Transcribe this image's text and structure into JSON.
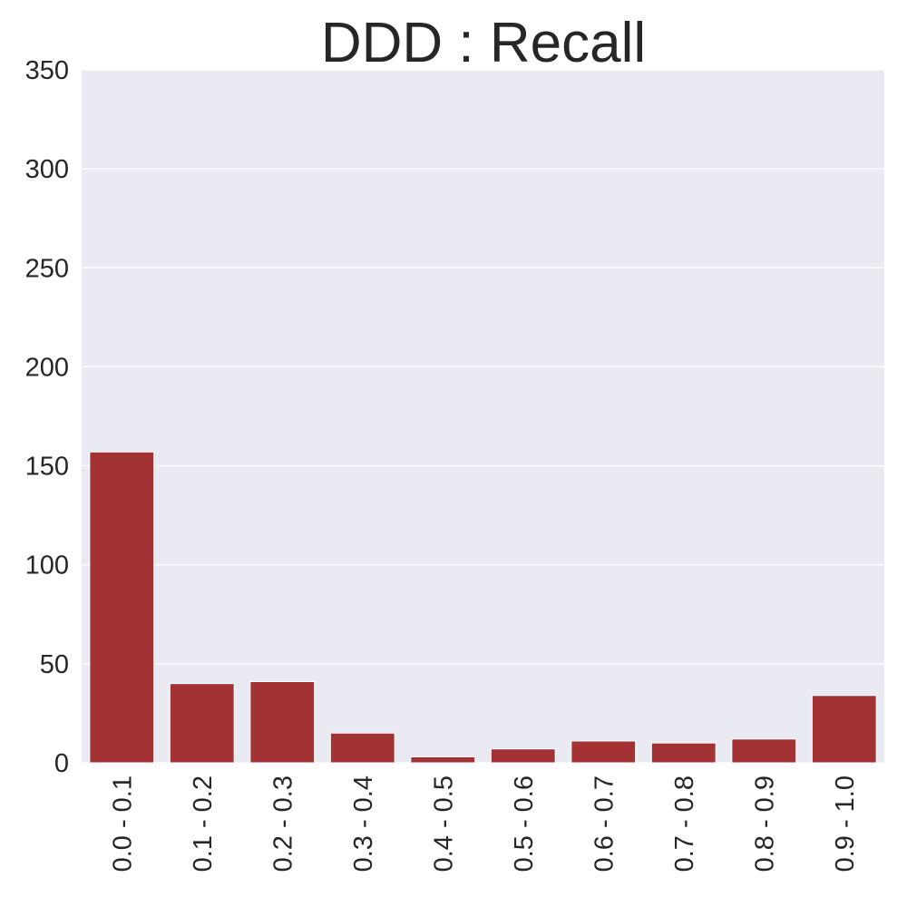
{
  "colors": {
    "bar": "#a23234",
    "plot_background": "#eaeaf2",
    "grid": "#ffffff",
    "text": "#262626"
  },
  "chart_data": {
    "type": "bar",
    "title": "DDD : Recall",
    "xlabel": "",
    "ylabel": "",
    "categories": [
      "0.0 - 0.1",
      "0.1 - 0.2",
      "0.2 - 0.3",
      "0.3 - 0.4",
      "0.4 - 0.5",
      "0.5 - 0.6",
      "0.6 - 0.7",
      "0.7 - 0.8",
      "0.8 - 0.9",
      "0.9 - 1.0"
    ],
    "values": [
      157,
      40,
      41,
      15,
      3,
      7,
      11,
      10,
      12,
      34
    ],
    "ylim": [
      0,
      350
    ],
    "yticks": [
      0,
      50,
      100,
      150,
      200,
      250,
      300,
      350
    ],
    "ytick_labels": [
      "0",
      "50",
      "100",
      "150",
      "200",
      "250",
      "300",
      "350"
    ],
    "grid": true,
    "legend": "none"
  }
}
